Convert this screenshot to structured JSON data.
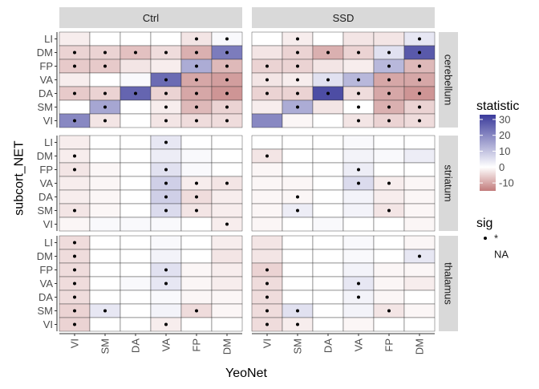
{
  "chart_data": {
    "type": "heatmap",
    "xlabel": "YeoNet",
    "ylabel": "subcort_NET",
    "x_categories": [
      "VI",
      "SM",
      "DA",
      "VA",
      "FP",
      "DM"
    ],
    "y_categories": [
      "LI",
      "DM",
      "FP",
      "VA",
      "DA",
      "SM",
      "VI"
    ],
    "column_facets": [
      "Ctrl",
      "SSD"
    ],
    "row_facets": [
      "cerebellum",
      "striatum",
      "thalamus"
    ],
    "legend": {
      "fill_title": "statistic",
      "fill_ticks": [
        30,
        20,
        10,
        0,
        -10
      ],
      "fill_range": [
        -15,
        33
      ],
      "colors": {
        "low": "#c27b7b",
        "mid": "#ffffff",
        "high": "#3b3b9b"
      },
      "sig_title": "sig",
      "sig_items": [
        "*",
        "NA"
      ],
      "placement": "right"
    },
    "panels": [
      {
        "col": "Ctrl",
        "row": "cerebellum",
        "values": [
          [
            -2,
            0,
            0,
            0,
            -3,
            1
          ],
          [
            -5,
            -5,
            -7,
            -4,
            -9,
            22
          ],
          [
            -6,
            -6,
            -3,
            -2,
            14,
            -8
          ],
          [
            -2,
            0,
            1,
            25,
            -10,
            -11
          ],
          [
            -6,
            -5,
            26,
            -5,
            -10,
            -12
          ],
          [
            0,
            15,
            0,
            -2,
            -8,
            -5
          ],
          [
            20,
            -3,
            0,
            -3,
            -4,
            -4
          ]
        ],
        "sig": [
          [
            0,
            0,
            0,
            0,
            1,
            1
          ],
          [
            1,
            1,
            1,
            1,
            1,
            1
          ],
          [
            1,
            1,
            0,
            0,
            1,
            1
          ],
          [
            0,
            0,
            0,
            1,
            1,
            1
          ],
          [
            1,
            1,
            1,
            1,
            1,
            1
          ],
          [
            0,
            1,
            0,
            1,
            1,
            1
          ],
          [
            1,
            1,
            0,
            1,
            1,
            1
          ]
        ]
      },
      {
        "col": "SSD",
        "row": "cerebellum",
        "values": [
          [
            0,
            -2,
            0,
            -3,
            -3,
            4
          ],
          [
            -3,
            -5,
            -9,
            -5,
            5,
            28
          ],
          [
            -5,
            -5,
            -3,
            -2,
            12,
            -8
          ],
          [
            -3,
            -2,
            5,
            12,
            -10,
            -10
          ],
          [
            -5,
            -5,
            30,
            -4,
            -10,
            -12
          ],
          [
            -2,
            14,
            -3,
            0,
            -9,
            -5
          ],
          [
            20,
            -1,
            0,
            -3,
            -5,
            -4
          ]
        ],
        "sig": [
          [
            0,
            1,
            0,
            0,
            0,
            1
          ],
          [
            0,
            1,
            1,
            1,
            1,
            1
          ],
          [
            1,
            1,
            0,
            0,
            1,
            1
          ],
          [
            1,
            1,
            1,
            1,
            1,
            1
          ],
          [
            1,
            1,
            1,
            1,
            1,
            1
          ],
          [
            0,
            1,
            0,
            1,
            1,
            1
          ],
          [
            0,
            0,
            0,
            1,
            1,
            1
          ]
        ]
      },
      {
        "col": "Ctrl",
        "row": "striatum",
        "values": [
          [
            -2,
            0,
            0,
            4,
            0,
            0
          ],
          [
            -2,
            0,
            0,
            3,
            1,
            0
          ],
          [
            -3,
            -1,
            0,
            5,
            1,
            0
          ],
          [
            -2,
            -1,
            0,
            8,
            -2,
            -3
          ],
          [
            -2,
            -1,
            0,
            8,
            -4,
            -2
          ],
          [
            -3,
            -1,
            0,
            6,
            -3,
            -2
          ],
          [
            -1,
            1,
            1,
            1,
            0,
            -2
          ]
        ],
        "sig": [
          [
            0,
            0,
            0,
            1,
            0,
            0
          ],
          [
            1,
            0,
            0,
            0,
            0,
            0
          ],
          [
            1,
            0,
            0,
            1,
            0,
            0
          ],
          [
            0,
            0,
            0,
            1,
            1,
            1
          ],
          [
            0,
            0,
            0,
            1,
            1,
            0
          ],
          [
            1,
            0,
            0,
            1,
            1,
            0
          ],
          [
            0,
            0,
            0,
            0,
            0,
            1
          ]
        ]
      },
      {
        "col": "SSD",
        "row": "striatum",
        "values": [
          [
            0,
            0,
            0,
            1,
            0,
            0
          ],
          [
            -3,
            0,
            0,
            2,
            1,
            3
          ],
          [
            -1,
            0,
            0,
            3,
            0,
            0
          ],
          [
            -1,
            -1,
            0,
            6,
            -2,
            -1
          ],
          [
            -1,
            -1,
            0,
            2,
            -2,
            -1
          ],
          [
            -1,
            3,
            0,
            2,
            -3,
            -1
          ],
          [
            -1,
            0,
            1,
            0,
            0,
            -1
          ]
        ],
        "sig": [
          [
            0,
            0,
            0,
            0,
            0,
            0
          ],
          [
            1,
            0,
            0,
            0,
            0,
            0
          ],
          [
            0,
            0,
            0,
            1,
            0,
            0
          ],
          [
            0,
            0,
            0,
            1,
            1,
            0
          ],
          [
            0,
            1,
            0,
            0,
            0,
            0
          ],
          [
            0,
            1,
            0,
            0,
            1,
            0
          ],
          [
            0,
            0,
            0,
            0,
            0,
            0
          ]
        ]
      },
      {
        "col": "Ctrl",
        "row": "thalamus",
        "values": [
          [
            -4,
            0,
            0,
            1,
            0,
            -2
          ],
          [
            -4,
            0,
            0,
            2,
            0,
            -3
          ],
          [
            -4,
            0,
            0,
            5,
            -1,
            -2
          ],
          [
            -4,
            0,
            1,
            4,
            -1,
            -2
          ],
          [
            -4,
            0,
            0,
            1,
            -1,
            -1
          ],
          [
            -5,
            4,
            0,
            2,
            -4,
            -1
          ],
          [
            -5,
            0,
            0,
            -2,
            0,
            0
          ]
        ],
        "sig": [
          [
            1,
            0,
            0,
            0,
            0,
            0
          ],
          [
            1,
            0,
            0,
            0,
            0,
            0
          ],
          [
            1,
            0,
            0,
            1,
            0,
            0
          ],
          [
            1,
            0,
            0,
            1,
            0,
            0
          ],
          [
            1,
            0,
            0,
            0,
            0,
            0
          ],
          [
            1,
            1,
            0,
            0,
            1,
            0
          ],
          [
            1,
            0,
            0,
            1,
            0,
            0
          ]
        ]
      },
      {
        "col": "SSD",
        "row": "thalamus",
        "values": [
          [
            -3,
            0,
            0,
            1,
            0,
            -1
          ],
          [
            -3,
            0,
            0,
            1,
            0,
            4
          ],
          [
            -5,
            0,
            0,
            2,
            -1,
            -1
          ],
          [
            -4,
            0,
            0,
            4,
            -1,
            -2
          ],
          [
            -4,
            0,
            0,
            2,
            -1,
            0
          ],
          [
            -4,
            5,
            0,
            2,
            -3,
            -1
          ],
          [
            -4,
            -2,
            0,
            -1,
            0,
            0
          ]
        ],
        "sig": [
          [
            0,
            0,
            0,
            0,
            0,
            0
          ],
          [
            0,
            0,
            0,
            0,
            0,
            1
          ],
          [
            1,
            0,
            0,
            0,
            0,
            0
          ],
          [
            1,
            0,
            0,
            1,
            0,
            0
          ],
          [
            1,
            0,
            0,
            1,
            0,
            0
          ],
          [
            1,
            1,
            0,
            0,
            1,
            0
          ],
          [
            1,
            1,
            0,
            0,
            0,
            0
          ]
        ]
      }
    ]
  }
}
